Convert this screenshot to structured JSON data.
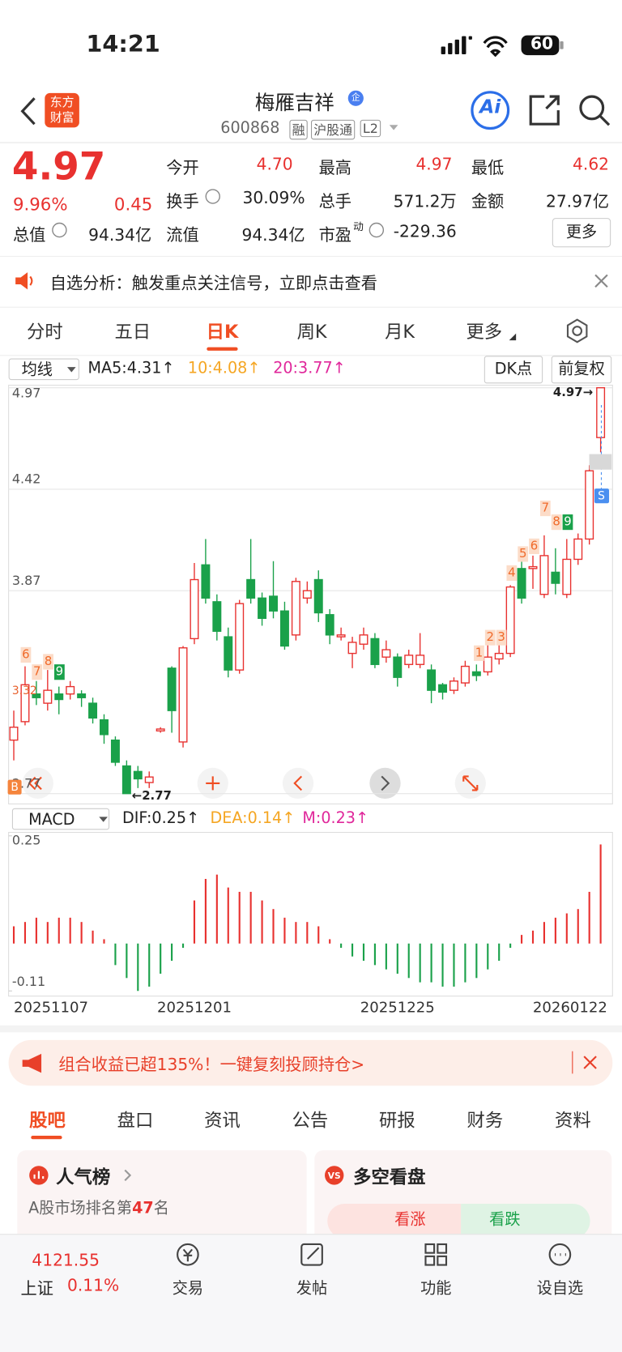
{
  "status_bar": {
    "time": "14:21",
    "battery": "60"
  },
  "header": {
    "logo": "东方财富",
    "name": "梅雁吉祥",
    "badge": "企",
    "code": "600868",
    "tags": [
      "融",
      "沪股通",
      "L2"
    ],
    "ai": "Ai"
  },
  "quote": {
    "price": "4.97",
    "change_pct": "9.96%",
    "change": "0.45",
    "open": {
      "label": "今开",
      "value": "4.70"
    },
    "high": {
      "label": "最高",
      "value": "4.97"
    },
    "low": {
      "label": "最低",
      "value": "4.62"
    },
    "turnover": {
      "label": "换手",
      "value": "30.09%"
    },
    "volume": {
      "label": "总手",
      "value": "571.2万"
    },
    "amount": {
      "label": "金额",
      "value": "27.97亿"
    },
    "market_cap": {
      "label": "总值",
      "value": "94.34亿"
    },
    "float_cap": {
      "label": "流值",
      "value": "94.34亿"
    },
    "pe": {
      "label": "市盈",
      "sup": "动",
      "value": "-229.36"
    },
    "more": "更多"
  },
  "notice": "自选分析：触发重点关注信号，立即点击查看",
  "period_tabs": [
    "分时",
    "五日",
    "日K",
    "周K",
    "月K",
    "更多"
  ],
  "active_period": "日K",
  "chart_data": [
    {
      "type": "candlestick",
      "toolbar": {
        "ma_select": "均线",
        "ma5": "MA5:4.31↑",
        "ma10": "10:4.08↑",
        "ma20": "20:3.77↑",
        "dk": "DK点",
        "adjust": "前复权"
      },
      "ylim": [
        2.77,
        4.97
      ],
      "yticks": [
        4.97,
        4.42,
        3.87,
        2.77
      ],
      "colors": {
        "up": "#e8312f",
        "down": "#1aa14a"
      },
      "open": [
        3.06,
        3.16,
        3.31,
        3.26,
        3.31,
        3.31,
        3.31,
        3.26,
        3.17,
        3.06,
        2.92,
        2.89,
        2.83,
        3.11,
        3.45,
        3.05,
        3.61,
        4.01,
        3.81,
        3.62,
        3.44,
        3.93,
        3.83,
        3.84,
        3.76,
        3.63,
        3.83,
        3.93,
        3.74,
        3.62,
        3.53,
        3.58,
        3.61,
        3.51,
        3.51,
        3.47,
        3.47,
        3.44,
        3.36,
        3.33,
        3.37,
        3.43,
        3.43,
        3.5,
        3.53,
        3.99,
        3.99,
        3.85,
        3.97,
        3.85,
        4.04,
        4.15,
        4.7
      ],
      "high": [
        3.22,
        3.46,
        3.38,
        3.44,
        3.35,
        3.38,
        3.33,
        3.29,
        3.2,
        3.08,
        2.95,
        2.92,
        2.89,
        3.13,
        3.46,
        3.57,
        4.02,
        4.15,
        3.85,
        3.67,
        3.82,
        4.15,
        3.86,
        4.03,
        3.81,
        3.94,
        3.92,
        3.98,
        3.77,
        3.67,
        3.62,
        3.67,
        3.64,
        3.6,
        3.53,
        3.55,
        3.64,
        3.47,
        3.37,
        3.4,
        3.49,
        3.47,
        3.58,
        3.6,
        3.9,
        4.03,
        4.06,
        4.17,
        4.1,
        4.15,
        4.18,
        4.55,
        4.97
      ],
      "low": [
        2.95,
        3.14,
        3.25,
        3.22,
        3.2,
        3.28,
        3.24,
        3.15,
        3.04,
        2.92,
        2.77,
        2.8,
        2.8,
        3.1,
        3.1,
        3.02,
        3.58,
        3.8,
        3.6,
        3.4,
        3.42,
        3.8,
        3.68,
        3.72,
        3.55,
        3.6,
        3.8,
        3.7,
        3.58,
        3.6,
        3.45,
        3.55,
        3.45,
        3.48,
        3.35,
        3.45,
        3.45,
        3.26,
        3.28,
        3.31,
        3.35,
        3.38,
        3.41,
        3.47,
        3.51,
        3.8,
        3.88,
        3.83,
        3.85,
        3.83,
        4.01,
        4.12,
        4.62
      ],
      "close": [
        3.13,
        3.36,
        3.29,
        3.33,
        3.28,
        3.35,
        3.29,
        3.18,
        3.09,
        2.94,
        2.77,
        2.85,
        2.86,
        3.12,
        3.22,
        3.56,
        3.93,
        3.83,
        3.65,
        3.44,
        3.8,
        3.83,
        3.72,
        3.76,
        3.57,
        3.92,
        3.87,
        3.75,
        3.63,
        3.63,
        3.59,
        3.63,
        3.47,
        3.55,
        3.4,
        3.52,
        3.52,
        3.33,
        3.32,
        3.38,
        3.46,
        3.41,
        3.51,
        3.53,
        3.89,
        3.83,
        4.0,
        4.06,
        3.91,
        4.04,
        4.15,
        4.52,
        4.97
      ],
      "annotations": {
        "high_label": "4.97→",
        "low_label": "←2.77",
        "mark_label": "3.32",
        "buy": "B",
        "sell": "S",
        "td": [
          "6",
          "7",
          "8",
          "9",
          "1",
          "2",
          "3",
          "4",
          "5",
          "6",
          "7",
          "8",
          "9"
        ]
      }
    },
    {
      "type": "bar",
      "toolbar": {
        "select": "MACD",
        "dif": "DIF:0.25↑",
        "dea": "DEA:0.14↑",
        "m": "M:0.23↑"
      },
      "ylim": [
        -0.11,
        0.25
      ],
      "yticks": [
        0.25,
        -0.11
      ],
      "colors": {
        "up": "#e8312f",
        "down": "#1aa14a"
      },
      "categories": [
        "20251107",
        null,
        null,
        null,
        null,
        null,
        null,
        null,
        null,
        null,
        null,
        null,
        null,
        null,
        null,
        null,
        "20251201",
        null,
        null,
        null,
        null,
        null,
        null,
        null,
        null,
        null,
        null,
        null,
        null,
        null,
        null,
        null,
        null,
        null,
        "20251225",
        null,
        null,
        null,
        null,
        null,
        null,
        null,
        null,
        null,
        null,
        null,
        null,
        null,
        null,
        null,
        null,
        null,
        "20260122"
      ],
      "values": [
        0.04,
        0.05,
        0.06,
        0.05,
        0.06,
        0.06,
        0.05,
        0.03,
        0.01,
        -0.05,
        -0.08,
        -0.11,
        -0.1,
        -0.07,
        -0.04,
        -0.01,
        0.1,
        0.15,
        0.16,
        0.13,
        0.12,
        0.12,
        0.1,
        0.08,
        0.06,
        0.05,
        0.05,
        0.04,
        0.01,
        -0.01,
        -0.03,
        -0.04,
        -0.05,
        -0.06,
        -0.07,
        -0.08,
        -0.09,
        -0.09,
        -0.1,
        -0.1,
        -0.09,
        -0.08,
        -0.06,
        -0.04,
        -0.01,
        0.02,
        0.03,
        0.05,
        0.06,
        0.07,
        0.08,
        0.12,
        0.23
      ]
    }
  ],
  "banner": "组合收益已超135%！一键复刻投顾持仓>",
  "content_tabs": [
    "股吧",
    "盘口",
    "资讯",
    "公告",
    "研报",
    "财务",
    "资料"
  ],
  "active_content_tab": "股吧",
  "cards": {
    "popularity": {
      "title": "人气榜",
      "text_before": "A股市场排名第",
      "rank": "47",
      "text_after": "名"
    },
    "sentiment": {
      "title": "多空看盘",
      "bull": "看涨",
      "bear": "看跌"
    }
  },
  "bottom_nav": {
    "index_value": "4121.55",
    "index_name": "上证",
    "index_change": "0.11%",
    "items": [
      "交易",
      "发帖",
      "功能",
      "设自选"
    ]
  }
}
